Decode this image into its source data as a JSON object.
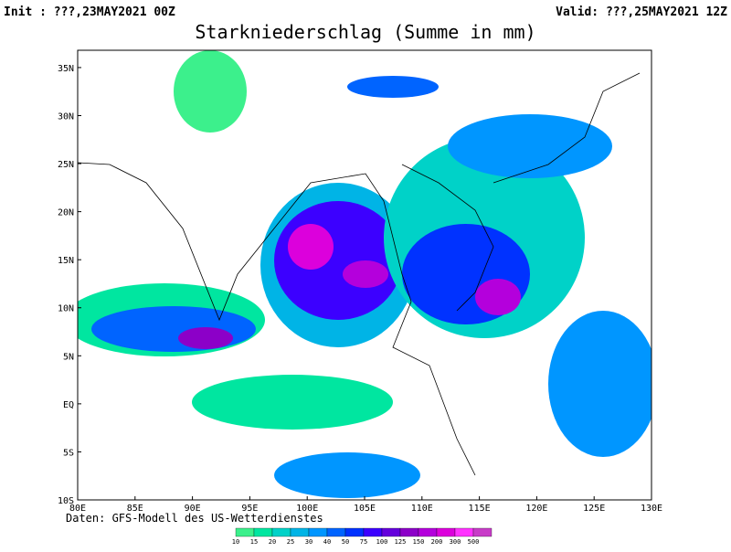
{
  "header": {
    "init": "Init : ???,23MAY2021 00Z",
    "valid": "Valid: ???,25MAY2021 12Z",
    "title": "Starkniederschlag (Summe in mm)"
  },
  "footer": "Daten: GFS-Modell des US-Wetterdienstes",
  "map": {
    "lonlim": [
      80,
      130
    ],
    "latlim": [
      -10,
      36.8
    ],
    "lon_ticks": [
      {
        "value": 80,
        "label": "80E"
      },
      {
        "value": 85,
        "label": "85E"
      },
      {
        "value": 90,
        "label": "90E"
      },
      {
        "value": 95,
        "label": "95E"
      },
      {
        "value": 100,
        "label": "100E"
      },
      {
        "value": 105,
        "label": "105E"
      },
      {
        "value": 110,
        "label": "110E"
      },
      {
        "value": 115,
        "label": "115E"
      },
      {
        "value": 120,
        "label": "120E"
      },
      {
        "value": 125,
        "label": "125E"
      },
      {
        "value": 130,
        "label": "130E"
      }
    ],
    "lat_ticks": [
      {
        "value": 35,
        "label": "35N"
      },
      {
        "value": 30,
        "label": "30N"
      },
      {
        "value": 25,
        "label": "25N"
      },
      {
        "value": 20,
        "label": "20N"
      },
      {
        "value": 15,
        "label": "15N"
      },
      {
        "value": 10,
        "label": "10N"
      },
      {
        "value": 5,
        "label": "5N"
      },
      {
        "value": 0,
        "label": "EQ"
      },
      {
        "value": -5,
        "label": "5S"
      },
      {
        "value": -10,
        "label": "10S"
      }
    ]
  },
  "legend": {
    "levels": [
      10,
      15,
      20,
      25,
      30,
      40,
      50,
      75,
      100,
      125,
      150,
      200,
      300,
      500
    ],
    "colors": [
      "#3cf08c",
      "#00e6a0",
      "#00d2c8",
      "#00b4e6",
      "#0096ff",
      "#0064ff",
      "#0032ff",
      "#3c00ff",
      "#6400dc",
      "#8c00c8",
      "#b400dc",
      "#dc00dc",
      "#ff32ff",
      "#c83cc8"
    ]
  }
}
